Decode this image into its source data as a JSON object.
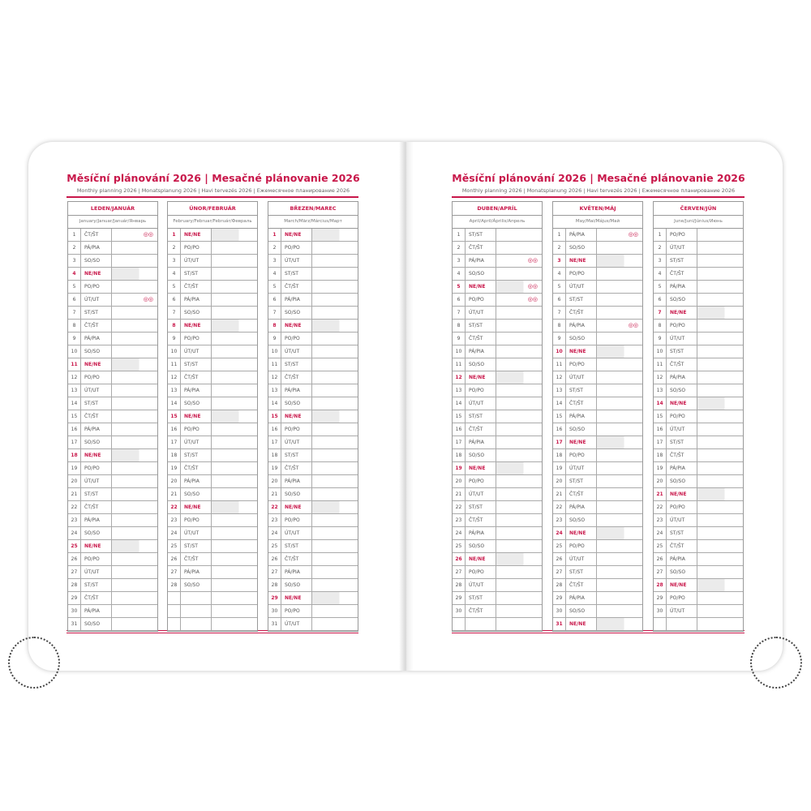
{
  "left_page": {
    "title": "Měsíční plánování 2026 | Mesačné plánovanie 2026",
    "subtitle": "Monthly planning 2026 | Monatsplanung 2026 | Havi tervezés 2026 | Ежемесячное планирование 2026"
  },
  "right_page": {
    "title": "Měsíční plánování 2026 | Mesačné plánovanie 2026",
    "subtitle": "Monthly planning 2026 | Monatsplanung 2026 | Havi tervezés 2026 | Ежемесячное планирование 2026"
  },
  "accent_color": "#c8174a",
  "months": [
    {
      "name": "LEDEN/JANUÁR",
      "subname": "January/Januar/Január/Январь",
      "rows": [
        [
          1,
          "ČT/ŠT",
          "moon-phase-icon"
        ],
        [
          2,
          "PÁ/PIA"
        ],
        [
          3,
          "SO/SO"
        ],
        [
          4,
          "NE/NE"
        ],
        [
          5,
          "PO/PO"
        ],
        [
          6,
          "ÚT/UT",
          "moon-phase-icon"
        ],
        [
          7,
          "ST/ST"
        ],
        [
          8,
          "ČT/ŠT"
        ],
        [
          9,
          "PÁ/PIA"
        ],
        [
          10,
          "SO/SO"
        ],
        [
          11,
          "NE/NE"
        ],
        [
          12,
          "PO/PO"
        ],
        [
          13,
          "ÚT/UT"
        ],
        [
          14,
          "ST/ST"
        ],
        [
          15,
          "ČT/ŠT"
        ],
        [
          16,
          "PÁ/PIA"
        ],
        [
          17,
          "SO/SO"
        ],
        [
          18,
          "NE/NE"
        ],
        [
          19,
          "PO/PO"
        ],
        [
          20,
          "ÚT/UT"
        ],
        [
          21,
          "ST/ST"
        ],
        [
          22,
          "ČT/ŠT"
        ],
        [
          23,
          "PÁ/PIA"
        ],
        [
          24,
          "SO/SO"
        ],
        [
          25,
          "NE/NE"
        ],
        [
          26,
          "PO/PO"
        ],
        [
          27,
          "ÚT/UT"
        ],
        [
          28,
          "ST/ST"
        ],
        [
          29,
          "ČT/ŠT"
        ],
        [
          30,
          "PÁ/PIA"
        ],
        [
          31,
          "SO/SO"
        ]
      ]
    },
    {
      "name": "ÚNOR/FEBRUÁR",
      "subname": "February/Februar/Február/Февраль",
      "rows": [
        [
          1,
          "NE/NE"
        ],
        [
          2,
          "PO/PO"
        ],
        [
          3,
          "ÚT/UT"
        ],
        [
          4,
          "ST/ST"
        ],
        [
          5,
          "ČT/ŠT"
        ],
        [
          6,
          "PÁ/PIA"
        ],
        [
          7,
          "SO/SO"
        ],
        [
          8,
          "NE/NE"
        ],
        [
          9,
          "PO/PO"
        ],
        [
          10,
          "ÚT/UT"
        ],
        [
          11,
          "ST/ST"
        ],
        [
          12,
          "ČT/ŠT"
        ],
        [
          13,
          "PÁ/PIA"
        ],
        [
          14,
          "SO/SO"
        ],
        [
          15,
          "NE/NE"
        ],
        [
          16,
          "PO/PO"
        ],
        [
          17,
          "ÚT/UT"
        ],
        [
          18,
          "ST/ST"
        ],
        [
          19,
          "ČT/ŠT"
        ],
        [
          20,
          "PÁ/PIA"
        ],
        [
          21,
          "SO/SO"
        ],
        [
          22,
          "NE/NE"
        ],
        [
          23,
          "PO/PO"
        ],
        [
          24,
          "ÚT/UT"
        ],
        [
          25,
          "ST/ST"
        ],
        [
          26,
          "ČT/ŠT"
        ],
        [
          27,
          "PÁ/PIA"
        ],
        [
          28,
          "SO/SO"
        ]
      ]
    },
    {
      "name": "BŘEZEN/MAREC",
      "subname": "March/März/Március/Март",
      "rows": [
        [
          1,
          "NE/NE"
        ],
        [
          2,
          "PO/PO"
        ],
        [
          3,
          "ÚT/UT"
        ],
        [
          4,
          "ST/ST"
        ],
        [
          5,
          "ČT/ŠT"
        ],
        [
          6,
          "PÁ/PIA"
        ],
        [
          7,
          "SO/SO"
        ],
        [
          8,
          "NE/NE"
        ],
        [
          9,
          "PO/PO"
        ],
        [
          10,
          "ÚT/UT"
        ],
        [
          11,
          "ST/ST"
        ],
        [
          12,
          "ČT/ŠT"
        ],
        [
          13,
          "PÁ/PIA"
        ],
        [
          14,
          "SO/SO"
        ],
        [
          15,
          "NE/NE"
        ],
        [
          16,
          "PO/PO"
        ],
        [
          17,
          "ÚT/UT"
        ],
        [
          18,
          "ST/ST"
        ],
        [
          19,
          "ČT/ŠT"
        ],
        [
          20,
          "PÁ/PIA"
        ],
        [
          21,
          "SO/SO"
        ],
        [
          22,
          "NE/NE"
        ],
        [
          23,
          "PO/PO"
        ],
        [
          24,
          "ÚT/UT"
        ],
        [
          25,
          "ST/ST"
        ],
        [
          26,
          "ČT/ŠT"
        ],
        [
          27,
          "PÁ/PIA"
        ],
        [
          28,
          "SO/SO"
        ],
        [
          29,
          "NE/NE"
        ],
        [
          30,
          "PO/PO"
        ],
        [
          31,
          "ÚT/UT"
        ]
      ]
    },
    {
      "name": "DUBEN/APRÍL",
      "subname": "April/April/Április/Апрель",
      "rows": [
        [
          1,
          "ST/ST"
        ],
        [
          2,
          "ČT/ŠT"
        ],
        [
          3,
          "PÁ/PIA",
          "moon-phase-icon"
        ],
        [
          4,
          "SO/SO"
        ],
        [
          5,
          "NE/NE",
          "moon-phase-icon"
        ],
        [
          6,
          "PO/PO",
          "moon-phase-icon"
        ],
        [
          7,
          "ÚT/UT"
        ],
        [
          8,
          "ST/ST"
        ],
        [
          9,
          "ČT/ŠT"
        ],
        [
          10,
          "PÁ/PIA"
        ],
        [
          11,
          "SO/SO"
        ],
        [
          12,
          "NE/NE"
        ],
        [
          13,
          "PO/PO"
        ],
        [
          14,
          "ÚT/UT"
        ],
        [
          15,
          "ST/ST"
        ],
        [
          16,
          "ČT/ŠT"
        ],
        [
          17,
          "PÁ/PIA"
        ],
        [
          18,
          "SO/SO"
        ],
        [
          19,
          "NE/NE"
        ],
        [
          20,
          "PO/PO"
        ],
        [
          21,
          "ÚT/UT"
        ],
        [
          22,
          "ST/ST"
        ],
        [
          23,
          "ČT/ŠT"
        ],
        [
          24,
          "PÁ/PIA"
        ],
        [
          25,
          "SO/SO"
        ],
        [
          26,
          "NE/NE"
        ],
        [
          27,
          "PO/PO"
        ],
        [
          28,
          "ÚT/UT"
        ],
        [
          29,
          "ST/ST"
        ],
        [
          30,
          "ČT/ŠT"
        ]
      ]
    },
    {
      "name": "KVĚTEN/MÁJ",
      "subname": "May/Mai/Május/Май",
      "rows": [
        [
          1,
          "PÁ/PIA",
          "moon-phase-icon"
        ],
        [
          2,
          "SO/SO"
        ],
        [
          3,
          "NE/NE"
        ],
        [
          4,
          "PO/PO"
        ],
        [
          5,
          "ÚT/UT"
        ],
        [
          6,
          "ST/ST"
        ],
        [
          7,
          "ČT/ŠT"
        ],
        [
          8,
          "PÁ/PIA",
          "moon-phase-icon"
        ],
        [
          9,
          "SO/SO"
        ],
        [
          10,
          "NE/NE"
        ],
        [
          11,
          "PO/PO"
        ],
        [
          12,
          "ÚT/UT"
        ],
        [
          13,
          "ST/ST"
        ],
        [
          14,
          "ČT/ŠT"
        ],
        [
          15,
          "PÁ/PIA"
        ],
        [
          16,
          "SO/SO"
        ],
        [
          17,
          "NE/NE"
        ],
        [
          18,
          "PO/PO"
        ],
        [
          19,
          "ÚT/UT"
        ],
        [
          20,
          "ST/ST"
        ],
        [
          21,
          "ČT/ŠT"
        ],
        [
          22,
          "PÁ/PIA"
        ],
        [
          23,
          "SO/SO"
        ],
        [
          24,
          "NE/NE"
        ],
        [
          25,
          "PO/PO"
        ],
        [
          26,
          "ÚT/UT"
        ],
        [
          27,
          "ST/ST"
        ],
        [
          28,
          "ČT/ŠT"
        ],
        [
          29,
          "PÁ/PIA"
        ],
        [
          30,
          "SO/SO"
        ],
        [
          31,
          "NE/NE"
        ]
      ]
    },
    {
      "name": "ČERVEN/JÚN",
      "subname": "June/Juni/Június/Июнь",
      "rows": [
        [
          1,
          "PO/PO"
        ],
        [
          2,
          "ÚT/UT"
        ],
        [
          3,
          "ST/ST"
        ],
        [
          4,
          "ČT/ŠT"
        ],
        [
          5,
          "PÁ/PIA"
        ],
        [
          6,
          "SO/SO"
        ],
        [
          7,
          "NE/NE"
        ],
        [
          8,
          "PO/PO"
        ],
        [
          9,
          "ÚT/UT"
        ],
        [
          10,
          "ST/ST"
        ],
        [
          11,
          "ČT/ŠT"
        ],
        [
          12,
          "PÁ/PIA"
        ],
        [
          13,
          "SO/SO"
        ],
        [
          14,
          "NE/NE"
        ],
        [
          15,
          "PO/PO"
        ],
        [
          16,
          "ÚT/UT"
        ],
        [
          17,
          "ST/ST"
        ],
        [
          18,
          "ČT/ŠT"
        ],
        [
          19,
          "PÁ/PIA"
        ],
        [
          20,
          "SO/SO"
        ],
        [
          21,
          "NE/NE"
        ],
        [
          22,
          "PO/PO"
        ],
        [
          23,
          "ÚT/UT"
        ],
        [
          24,
          "ST/ST"
        ],
        [
          25,
          "ČT/ŠT"
        ],
        [
          26,
          "PÁ/PIA"
        ],
        [
          27,
          "SO/SO"
        ],
        [
          28,
          "NE/NE"
        ],
        [
          29,
          "PO/PO"
        ],
        [
          30,
          "ÚT/UT"
        ]
      ]
    }
  ]
}
